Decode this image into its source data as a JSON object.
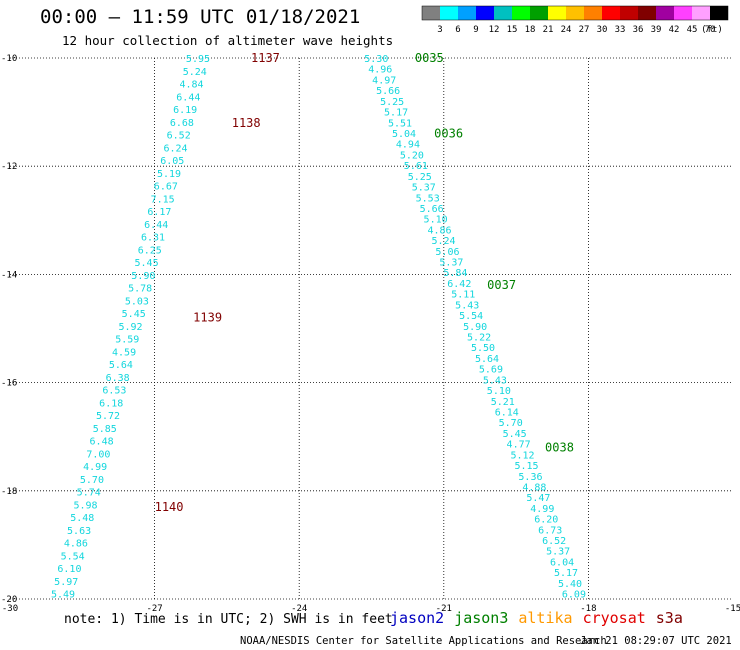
{
  "title": "00:00 – 11:59 UTC 01/18/2021",
  "subtitle": "12 hour collection of altimeter wave heights",
  "colorbar": {
    "unit": "(ft)",
    "labels": [
      "3",
      "6",
      "9",
      "12",
      "15",
      "18",
      "21",
      "24",
      "27",
      "30",
      "33",
      "36",
      "39",
      "42",
      "45",
      "70"
    ],
    "colors": [
      "#808080",
      "#00ffff",
      "#00a0ff",
      "#0000ff",
      "#00c0c0",
      "#00ff00",
      "#00a000",
      "#ffff00",
      "#ffc000",
      "#ff8000",
      "#ff0000",
      "#c00000",
      "#800000",
      "#a000a0",
      "#ff40ff",
      "#ffa0ff",
      "#000000"
    ]
  },
  "axes": {
    "lon_ticks": [
      -30,
      -27,
      -24,
      -21,
      -18,
      -15
    ],
    "lon_labels": [
      "-30",
      "-27",
      "-24",
      "-21",
      "-18",
      "-15"
    ],
    "lat_ticks": [
      -10,
      -12,
      -14,
      -16,
      -18,
      -20
    ],
    "lat_labels": [
      "-10",
      "-12",
      "-14",
      "-16",
      "-18",
      "-20"
    ],
    "xlim": [
      -30,
      -15
    ],
    "ylim": [
      -20,
      -10
    ]
  },
  "tracks": [
    {
      "lon_start": -26.1,
      "lat_start": -10.0,
      "lon_end": -28.9,
      "lat_end": -19.9,
      "swh": [
        "5.95",
        "5.24",
        "4.84",
        "6.44",
        "6.19",
        "6.68",
        "6.52",
        "6.24",
        "6.05",
        "5.19",
        "6.67",
        "7.15",
        "6.17",
        "6.44",
        "6.31",
        "6.25",
        "5.45",
        "5.90",
        "5.78",
        "5.03",
        "5.45",
        "5.92",
        "5.59",
        "4.59",
        "5.64",
        "6.38",
        "6.53",
        "6.18",
        "5.72",
        "5.85",
        "6.48",
        "7.00",
        "4.99",
        "5.70",
        "5.74",
        "5.98",
        "5.48",
        "5.63",
        "4.86",
        "5.54",
        "6.10",
        "5.97",
        "5.49"
      ],
      "times": [
        {
          "label": "1137",
          "lat": -10.0,
          "lon": -25.0
        },
        {
          "label": "1138",
          "lat": -11.2,
          "lon": -25.4
        },
        {
          "label": "1139",
          "lat": -14.8,
          "lon": -26.2
        },
        {
          "label": "1140",
          "lat": -18.3,
          "lon": -27.0
        }
      ],
      "time_color": "#800000"
    },
    {
      "lon_start": -22.4,
      "lat_start": -10.0,
      "lon_end": -18.3,
      "lat_end": -19.9,
      "swh": [
        "5.30",
        "4.96",
        "4.97",
        "5.66",
        "5.25",
        "5.17",
        "5.51",
        "5.04",
        "4.94",
        "5.20",
        "5.61",
        "5.25",
        "5.37",
        "5.53",
        "5.66",
        "5.10",
        "4.86",
        "5.24",
        "5.06",
        "5.37",
        "5.84",
        "6.42",
        "5.11",
        "5.43",
        "5.54",
        "5.90",
        "5.22",
        "5.50",
        "5.64",
        "5.69",
        "5.43",
        "5.10",
        "5.21",
        "6.14",
        "5.70",
        "5.45",
        "4.77",
        "5.12",
        "5.15",
        "5.36",
        "4.88",
        "5.47",
        "4.99",
        "6.20",
        "6.73",
        "6.52",
        "5.37",
        "6.04",
        "5.17",
        "5.40",
        "6.09"
      ],
      "times": [
        {
          "label": "0035",
          "lat": -10.0,
          "lon": -21.6
        },
        {
          "label": "0036",
          "lat": -11.4,
          "lon": -21.2
        },
        {
          "label": "0037",
          "lat": -14.2,
          "lon": -20.1
        },
        {
          "label": "0038",
          "lat": -17.2,
          "lon": -18.9
        }
      ],
      "time_color": "#008000"
    }
  ],
  "note": "note: 1) Time is in UTC; 2) SWH is in feet",
  "legend": [
    {
      "name": "jason2",
      "color": "#0000c0"
    },
    {
      "name": "jason3",
      "color": "#008000"
    },
    {
      "name": "altika",
      "color": "#ff9900"
    },
    {
      "name": "cryosat",
      "color": "#e00000"
    },
    {
      "name": "s3a",
      "color": "#800000"
    }
  ],
  "credit": "NOAA/NESDIS Center for Satellite Applications and Research",
  "timestamp": "Jan 21 08:29:07 UTC 2021"
}
